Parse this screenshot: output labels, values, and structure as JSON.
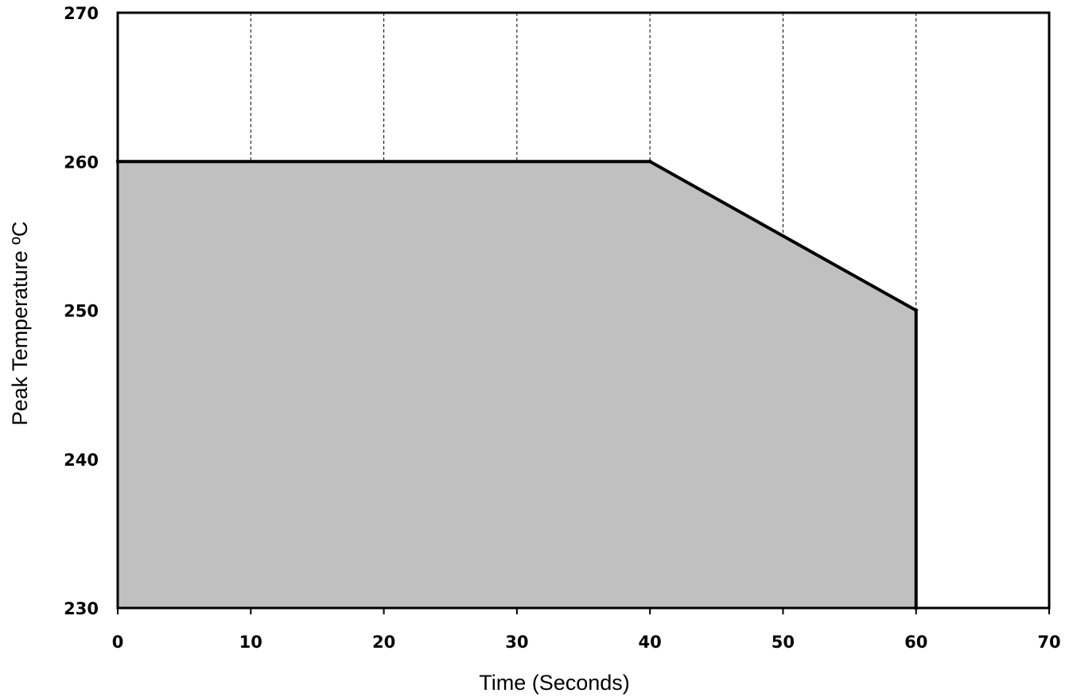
{
  "chart_data": {
    "type": "area",
    "title": "",
    "xlabel": "Time (Seconds)",
    "ylabel": "Peak Temperature ºC",
    "xlim": [
      0,
      70
    ],
    "ylim": [
      230,
      270
    ],
    "x_ticks": [
      0,
      10,
      20,
      30,
      40,
      50,
      60,
      70
    ],
    "y_ticks": [
      230,
      240,
      250,
      260,
      270
    ],
    "x_tick_labels": [
      "0",
      "10",
      "20",
      "30",
      "40",
      "50",
      "60",
      "70"
    ],
    "y_tick_labels": [
      "230",
      "240",
      "250",
      "260",
      "270"
    ],
    "grid": "vertical dashed",
    "series": [
      {
        "x": [
          0,
          40,
          60,
          60
        ],
        "y": [
          260,
          260,
          250,
          230
        ]
      }
    ],
    "colors": {
      "fill": "#c0c0c0",
      "line": "#000000",
      "grid": "#000000"
    }
  }
}
